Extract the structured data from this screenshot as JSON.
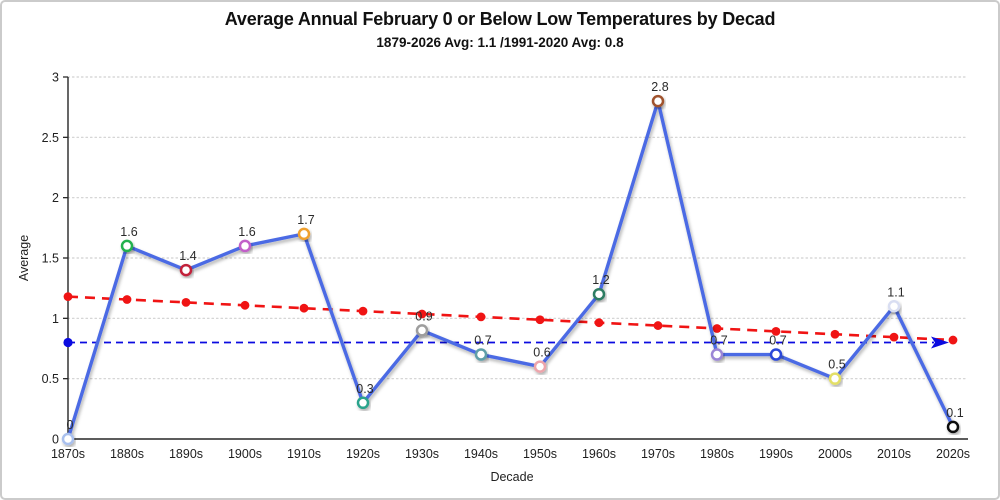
{
  "page": {
    "background": "#ffffff",
    "frame_border_color": "#cbcbcb"
  },
  "chart_data": {
    "type": "line",
    "title": "Average Annual February 0 or Below Low Temperatures by Decad",
    "subtitle": "1879-2026 Avg: 1.1 /1991-2020 Avg: 0.8",
    "xlabel": "Decade",
    "ylabel": "Average",
    "ylim": [
      0,
      3
    ],
    "yticks": [
      0,
      0.5,
      1,
      1.5,
      2,
      2.5,
      3
    ],
    "ytick_labels": [
      "0",
      "0.5",
      "1",
      "1.5",
      "2",
      "2.5",
      "3"
    ],
    "grid": "horizontal-dotted",
    "grid_color": "#d0d0d0",
    "axis_color": "#262626",
    "legend": "none",
    "categories": [
      "1870s",
      "1880s",
      "1890s",
      "1900s",
      "1910s",
      "1920s",
      "1930s",
      "1940s",
      "1950s",
      "1960s",
      "1970s",
      "1980s",
      "1990s",
      "2000s",
      "2010s",
      "2020s"
    ],
    "series": [
      {
        "name": "decade-average",
        "type": "line",
        "color": "#4b6be4",
        "line_width": 3.4,
        "values": [
          0,
          1.6,
          1.4,
          1.6,
          1.7,
          0.3,
          0.9,
          0.7,
          0.6,
          1.2,
          2.8,
          0.7,
          0.7,
          0.5,
          1.1,
          0.1
        ],
        "data_labels": [
          "0",
          "1.6",
          "1.4",
          "1.6",
          "1.7",
          "0.3",
          "0.9",
          "0.7",
          "0.6",
          "1.2",
          "2.8",
          "0.7",
          "0.7",
          "0.5",
          "1.1",
          "0.1"
        ],
        "data_label_color": "#2b2b2b",
        "marker_style": "open-circle-white-fill",
        "marker_colors": [
          "#a9c0ee",
          "#23b14d",
          "#c2203a",
          "#c25fc9",
          "#efa02f",
          "#2aa38c",
          "#9d9d9d",
          "#5f9ea8",
          "#eda4ab",
          "#2e7d64",
          "#a0522d",
          "#9b85d6",
          "#2b47d9",
          "#e3df66",
          "#d9def2",
          "#111111"
        ]
      },
      {
        "name": "linear-trend-1879-2026",
        "type": "dashed-line",
        "color": "#f01414",
        "marker_style": "filled-circle",
        "values": [
          1.18,
          1.156,
          1.132,
          1.108,
          1.084,
          1.06,
          1.036,
          1.012,
          0.988,
          0.964,
          0.94,
          0.916,
          0.892,
          0.868,
          0.844,
          0.82
        ]
      },
      {
        "name": "avg-1991-2020-reference",
        "type": "dashed-horizontal-line",
        "color": "#0b0be0",
        "value": 0.8,
        "start_marker": "filled-circle",
        "end_marker": "arrow-right"
      }
    ]
  }
}
